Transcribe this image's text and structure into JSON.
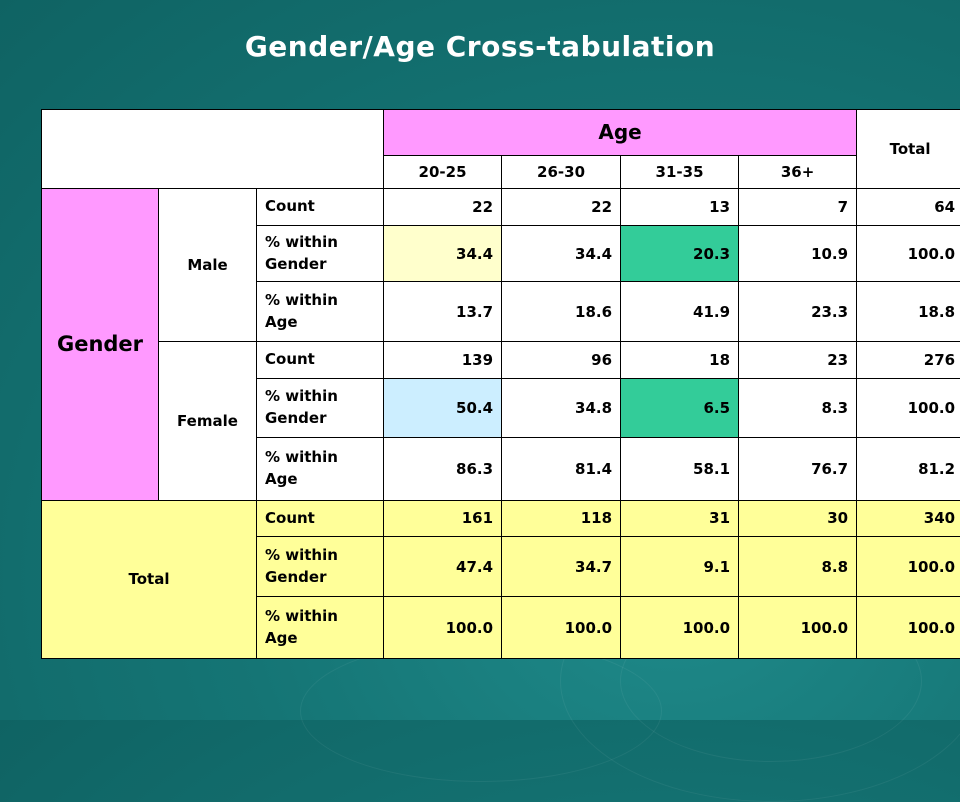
{
  "title": "Gender/Age Cross-tabulation",
  "header": {
    "age_label": "Age",
    "total_label": "Total",
    "age_groups": [
      "20-25",
      "26-30",
      "31-35",
      "36+"
    ]
  },
  "row_group_label": "Gender",
  "stat_labels": {
    "count": "Count",
    "pct_gender": "% within Gender",
    "pct_age": "% within Age"
  },
  "groups": [
    {
      "label": "Male",
      "count": [
        "22",
        "22",
        "13",
        "7",
        "64"
      ],
      "pct_gender": [
        "34.4",
        "34.4",
        "20.3",
        "10.9",
        "100.0"
      ],
      "pct_age": [
        "13.7",
        "18.6",
        "41.9",
        "23.3",
        "18.8"
      ]
    },
    {
      "label": "Female",
      "count": [
        "139",
        "96",
        "18",
        "23",
        "276"
      ],
      "pct_gender": [
        "50.4",
        "34.8",
        "6.5",
        "8.3",
        "100.0"
      ],
      "pct_age": [
        "86.3",
        "81.4",
        "58.1",
        "76.7",
        "81.2"
      ]
    }
  ],
  "total": {
    "label": "Total",
    "count": [
      "161",
      "118",
      "31",
      "30",
      "340"
    ],
    "pct_gender": [
      "47.4",
      "34.7",
      "9.1",
      "8.8",
      "100.0"
    ],
    "pct_age": [
      "100.0",
      "100.0",
      "100.0",
      "100.0",
      "100.0"
    ]
  },
  "colors": {
    "background": "#157575",
    "pink": "#ff99ff",
    "yellow": "#ffff99",
    "cream": "#ffffcc",
    "teal": "#33cc99",
    "light_blue": "#cceeff",
    "group_label": "#800080"
  }
}
